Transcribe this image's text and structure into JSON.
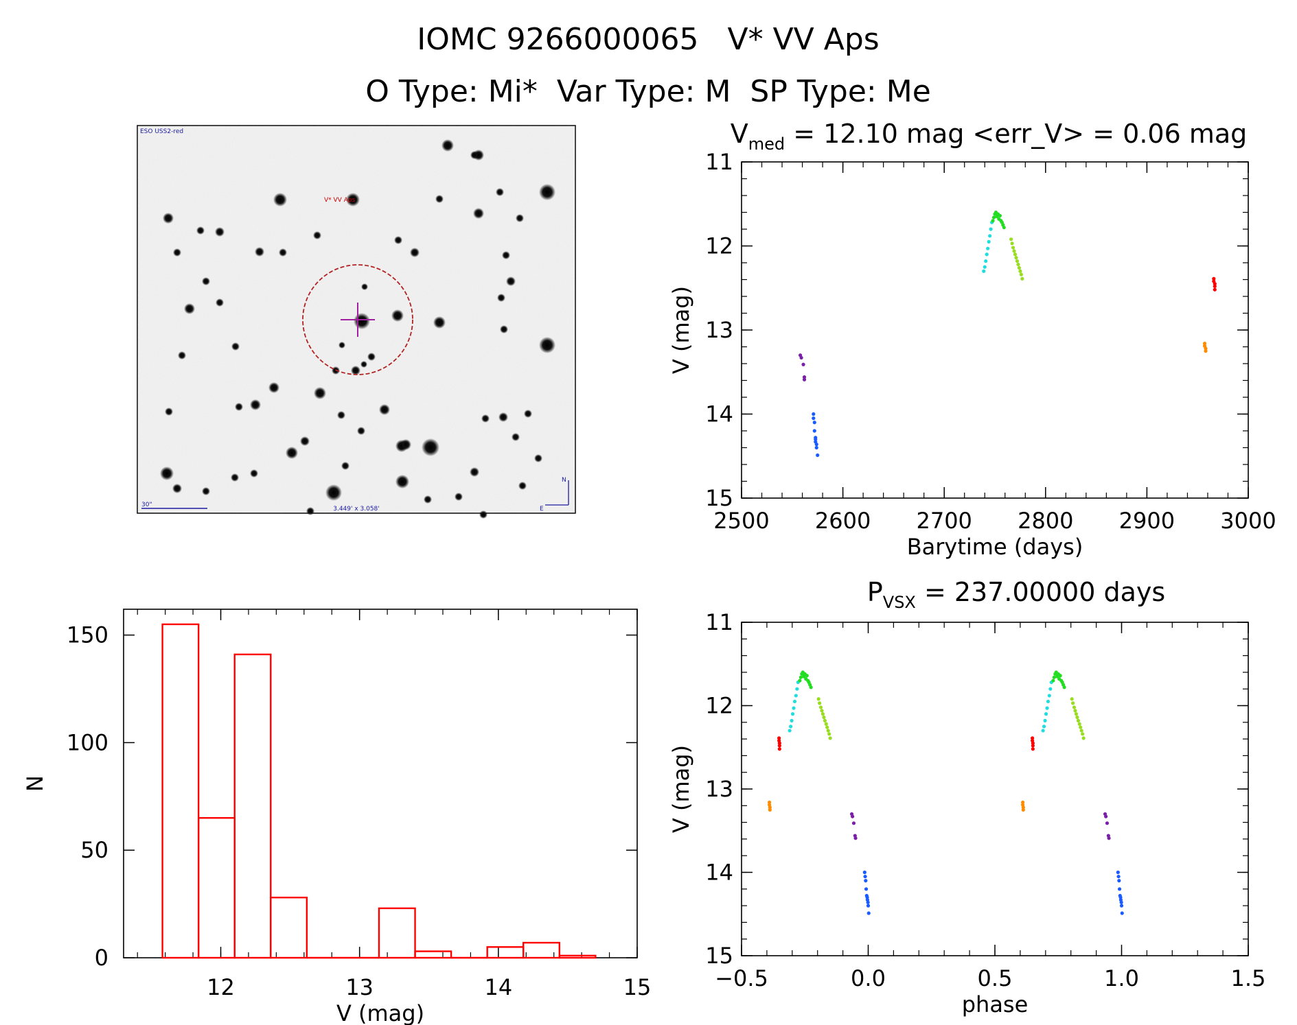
{
  "header": {
    "title": "IOMC 9266000065   V* VV Aps",
    "subtitle": "O Type: Mi*  Var Type: M  SP Type: Me"
  },
  "finder": {
    "survey_label": "ESO USS2-red",
    "target_label": "V* VV Aps",
    "scale_label": "30\"",
    "fov_label": "3.449' x 3.058'",
    "north_label": "N",
    "east_label": "E"
  },
  "colors": {
    "hist": "#ff0000",
    "p1": "#7a1fa8",
    "p2": "#1a5cff",
    "p3": "#22dddd",
    "p4": "#22dd22",
    "p5": "#99dd22",
    "p6": "#ff8c00",
    "p7": "#ff0000",
    "finder_circle": "#b22222",
    "finder_cross": "#a020a0",
    "finder_text": "#1a1aa0"
  },
  "chart_data": [
    {
      "type": "scatter",
      "id": "lightcurve",
      "title_main": "V",
      "title_sub": "med",
      "title_rest": " = 12.10 mag <err_V> = 0.06 mag",
      "xlabel": "Barytime (days)",
      "ylabel": "V (mag)",
      "xlim": [
        2500,
        3000
      ],
      "ylim": [
        15,
        11
      ],
      "xticks": [
        2500,
        2600,
        2700,
        2800,
        2900,
        3000
      ],
      "xtick_labels": [
        "2500",
        "2600",
        "2700",
        "2800",
        "2900",
        "3000"
      ],
      "yticks": [
        11,
        12,
        13,
        14,
        15
      ],
      "ytick_labels": [
        "11",
        "12",
        "13",
        "14",
        "15"
      ],
      "series": [
        {
          "name": "segment-1",
          "color": "#7a1fa8",
          "x": [
            2558,
            2559,
            2561,
            2562,
            2562
          ],
          "y": [
            13.3,
            13.33,
            13.41,
            13.56,
            13.59
          ]
        },
        {
          "name": "segment-2",
          "color": "#1a5cff",
          "x": [
            2571,
            2571,
            2572,
            2572,
            2573,
            2573,
            2573,
            2574,
            2574,
            2575
          ],
          "y": [
            14.0,
            14.05,
            14.1,
            14.2,
            14.28,
            14.3,
            14.33,
            14.36,
            14.4,
            14.49
          ]
        },
        {
          "name": "segment-3",
          "color": "#22dddd",
          "x": [
            2739,
            2740,
            2741,
            2742,
            2743,
            2744,
            2745,
            2746,
            2747
          ],
          "y": [
            12.3,
            12.25,
            12.18,
            12.1,
            12.03,
            11.95,
            11.88,
            11.8,
            11.72
          ]
        },
        {
          "name": "segment-4",
          "color": "#22dd22",
          "x": [
            2748,
            2749,
            2750,
            2751,
            2752,
            2753,
            2754,
            2755,
            2756,
            2757,
            2758,
            2759
          ],
          "y": [
            11.7,
            11.66,
            11.62,
            11.6,
            11.65,
            11.62,
            11.68,
            11.64,
            11.7,
            11.72,
            11.75,
            11.78
          ]
        },
        {
          "name": "segment-5",
          "color": "#99dd22",
          "x": [
            2766,
            2767,
            2768,
            2769,
            2770,
            2771,
            2772,
            2773,
            2774,
            2775,
            2776,
            2777
          ],
          "y": [
            11.92,
            11.97,
            12.02,
            12.06,
            12.1,
            12.14,
            12.18,
            12.22,
            12.26,
            12.3,
            12.34,
            12.39
          ]
        },
        {
          "name": "segment-6",
          "color": "#ff8c00",
          "x": [
            2957,
            2957,
            2958,
            2958
          ],
          "y": [
            13.16,
            13.19,
            13.22,
            13.25
          ]
        },
        {
          "name": "segment-7",
          "color": "#ff0000",
          "x": [
            2966,
            2966,
            2967,
            2967,
            2967
          ],
          "y": [
            12.39,
            12.42,
            12.45,
            12.48,
            12.52
          ]
        }
      ]
    },
    {
      "type": "scatter",
      "id": "phased",
      "title_main": "P",
      "title_sub": "VSX",
      "title_rest": " = 237.00000 days",
      "period": 237.0,
      "xlabel": "phase",
      "ylabel": "V (mag)",
      "xlim": [
        -0.5,
        1.5
      ],
      "ylim": [
        15,
        11
      ],
      "xticks": [
        -0.5,
        0.0,
        0.5,
        1.0,
        1.5
      ],
      "xtick_labels": [
        "−0.5",
        "0.0",
        "0.5",
        "1.0",
        "1.5"
      ],
      "yticks": [
        11,
        12,
        13,
        14,
        15
      ],
      "ytick_labels": [
        "11",
        "12",
        "13",
        "14",
        "15"
      ],
      "series": [
        {
          "name": "segment-1",
          "color": "#7a1fa8",
          "x": [
            -0.065,
            -0.062,
            -0.057,
            -0.052,
            -0.05
          ],
          "y": [
            13.3,
            13.33,
            13.41,
            13.56,
            13.59
          ]
        },
        {
          "name": "segment-2",
          "color": "#1a5cff",
          "x": [
            -0.014,
            -0.012,
            -0.01,
            -0.008,
            -0.006,
            -0.004,
            -0.003,
            -0.001,
            0.0,
            0.002
          ],
          "y": [
            14.0,
            14.05,
            14.1,
            14.2,
            14.28,
            14.3,
            14.33,
            14.36,
            14.4,
            14.49
          ]
        },
        {
          "name": "segment-3",
          "color": "#22dddd",
          "x": [
            -0.31,
            -0.306,
            -0.302,
            -0.298,
            -0.294,
            -0.29,
            -0.285,
            -0.281,
            -0.277
          ],
          "y": [
            12.3,
            12.25,
            12.18,
            12.1,
            12.03,
            11.95,
            11.88,
            11.8,
            11.72
          ]
        },
        {
          "name": "segment-4",
          "color": "#22dd22",
          "x": [
            -0.27,
            -0.266,
            -0.262,
            -0.258,
            -0.254,
            -0.25,
            -0.246,
            -0.242,
            -0.238,
            -0.234,
            -0.23,
            -0.226
          ],
          "y": [
            11.7,
            11.66,
            11.62,
            11.6,
            11.65,
            11.62,
            11.68,
            11.64,
            11.7,
            11.72,
            11.75,
            11.78
          ]
        },
        {
          "name": "segment-5",
          "color": "#99dd22",
          "x": [
            -0.196,
            -0.192,
            -0.187,
            -0.183,
            -0.179,
            -0.175,
            -0.171,
            -0.166,
            -0.162,
            -0.158,
            -0.154,
            -0.15
          ],
          "y": [
            11.92,
            11.97,
            12.02,
            12.06,
            12.1,
            12.14,
            12.18,
            12.22,
            12.26,
            12.3,
            12.34,
            12.39
          ]
        },
        {
          "name": "segment-6",
          "color": "#ff8c00",
          "x": [
            -0.39,
            -0.39,
            -0.388,
            -0.388
          ],
          "y": [
            13.16,
            13.19,
            13.22,
            13.25
          ]
        },
        {
          "name": "segment-7",
          "color": "#ff0000",
          "x": [
            -0.352,
            -0.352,
            -0.35,
            -0.35,
            -0.35
          ],
          "y": [
            12.39,
            12.42,
            12.45,
            12.48,
            12.52
          ]
        }
      ]
    },
    {
      "type": "bar",
      "id": "histogram",
      "title": "",
      "xlabel": "V (mag)",
      "ylabel": "N",
      "xlim": [
        11.3,
        15.0
      ],
      "ylim": [
        0,
        162
      ],
      "xticks": [
        12,
        13,
        14,
        15
      ],
      "xtick_labels": [
        "12",
        "13",
        "14",
        "15"
      ],
      "yticks": [
        0,
        50,
        100,
        150
      ],
      "ytick_labels": [
        "0",
        "50",
        "100",
        "150"
      ],
      "bin_edges": [
        11.58,
        11.84,
        12.1,
        12.36,
        12.62,
        12.88,
        13.14,
        13.4,
        13.66,
        13.92,
        14.18,
        14.44,
        14.7
      ],
      "values": [
        155,
        65,
        141,
        28,
        0,
        0,
        23,
        3,
        0,
        5,
        7,
        1
      ]
    }
  ]
}
